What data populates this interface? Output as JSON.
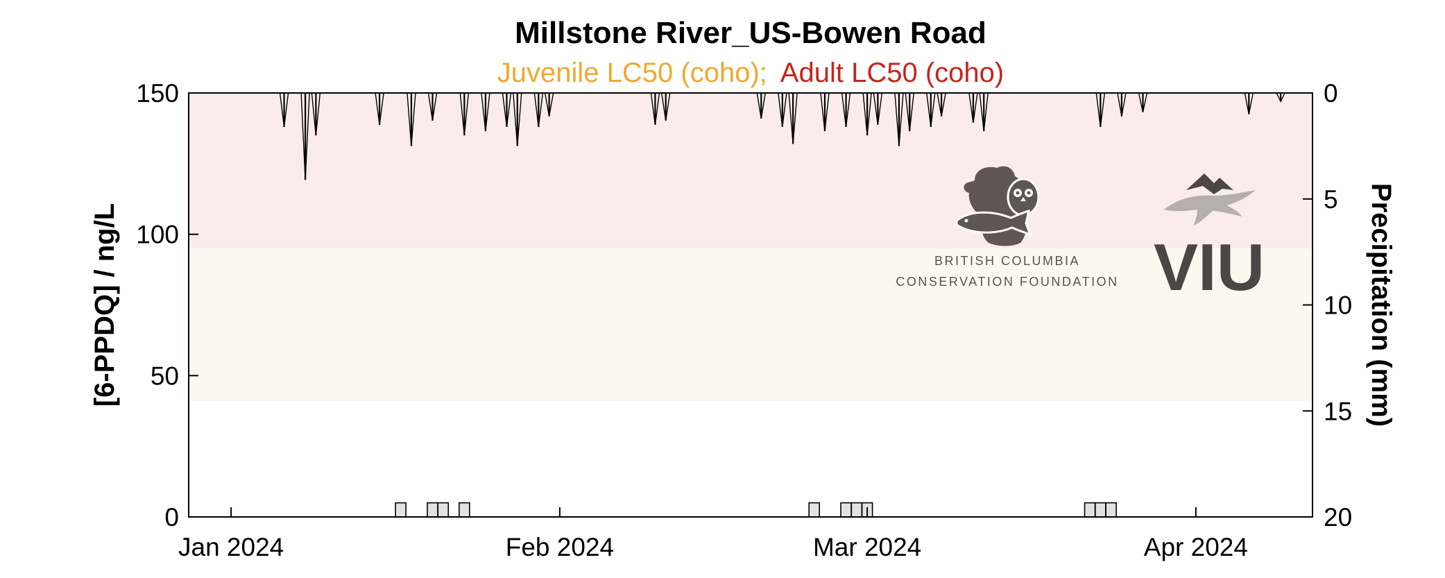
{
  "chart_data": {
    "type": "bar",
    "title": "Millstone River_US-Bowen Road",
    "subtitle": {
      "juvenile": "Juvenile LC50 (coho);",
      "adult": "Adult LC50 (coho)",
      "juvenile_color": "#f0a830",
      "adult_color": "#c8231e"
    },
    "ylabel": "[6-PPDQ] / ng/L",
    "y2label": "Precipitation (mm)",
    "ylim": [
      0,
      150
    ],
    "y2lim": [
      0,
      20
    ],
    "y2_reversed": true,
    "yticks": [
      "0",
      "50",
      "100",
      "150"
    ],
    "y2ticks": [
      "0",
      "5",
      "10",
      "15",
      "20"
    ],
    "xlim": [
      "2023-12-28",
      "2024-04-12"
    ],
    "xticks": [
      {
        "date": "2024-01-01",
        "label": "Jan 2024"
      },
      {
        "date": "2024-02-01",
        "label": "Feb 2024"
      },
      {
        "date": "2024-03-01",
        "label": "Mar 2024"
      },
      {
        "date": "2024-04-01",
        "label": "Apr 2024"
      }
    ],
    "thresholds": [
      {
        "name": "Juvenile LC50 (coho)",
        "value": 41,
        "color": "#fdf8ef"
      },
      {
        "name": "Adult LC50 (coho)",
        "value": 95,
        "color": "#faeceb"
      }
    ],
    "samples": {
      "name": "[6-PPDQ]",
      "color": "#e2e2e2",
      "x": [
        "2024-01-17",
        "2024-01-20",
        "2024-01-21",
        "2024-01-23",
        "2024-02-25",
        "2024-02-28",
        "2024-02-29",
        "2024-03-01",
        "2024-03-22",
        "2024-03-23",
        "2024-03-24"
      ],
      "values": [
        5,
        5,
        5,
        5,
        5,
        5,
        5,
        5,
        5,
        5,
        5
      ]
    },
    "precipitation": {
      "name": "Precipitation",
      "color": "#000000",
      "x": [
        "2024-01-06",
        "2024-01-08",
        "2024-01-09",
        "2024-01-15",
        "2024-01-18",
        "2024-01-20",
        "2024-01-23",
        "2024-01-25",
        "2024-01-27",
        "2024-01-28",
        "2024-01-30",
        "2024-01-31",
        "2024-02-10",
        "2024-02-11",
        "2024-02-20",
        "2024-02-22",
        "2024-02-23",
        "2024-02-26",
        "2024-02-28",
        "2024-03-01",
        "2024-03-02",
        "2024-03-04",
        "2024-03-05",
        "2024-03-07",
        "2024-03-08",
        "2024-03-11",
        "2024-03-12",
        "2024-03-23",
        "2024-03-25",
        "2024-03-27",
        "2024-04-06",
        "2024-04-09"
      ],
      "values": [
        1.6,
        4.1,
        2.0,
        1.5,
        2.5,
        1.3,
        2.0,
        1.8,
        1.6,
        2.5,
        1.6,
        1.1,
        1.5,
        1.3,
        1.2,
        1.6,
        2.4,
        1.8,
        1.6,
        2.0,
        1.5,
        2.5,
        1.8,
        1.6,
        1.1,
        1.4,
        1.8,
        1.6,
        1.1,
        0.9,
        1.0,
        0.4
      ]
    },
    "grid": false,
    "legend": "none"
  },
  "logos": {
    "bccf_line1": "BRITISH COLUMBIA",
    "bccf_line2": "CONSERVATION FOUNDATION",
    "bccf_icon": "bear-owl-salmon-icon",
    "viu_text": "VIU",
    "viu_icon": "mountain-leaf-icon"
  }
}
